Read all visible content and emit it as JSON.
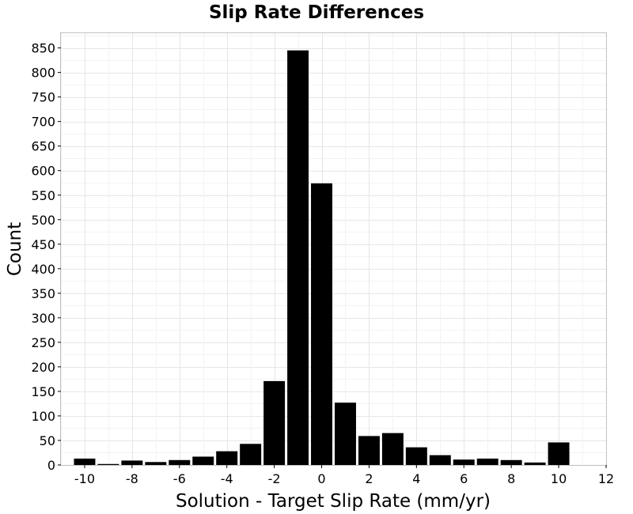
{
  "chart_data": {
    "type": "bar",
    "title": "Slip Rate Differences",
    "xlabel": "Solution - Target Slip Rate (mm/yr)",
    "ylabel": "Count",
    "xlim": [
      -11,
      12
    ],
    "ylim": [
      0,
      880
    ],
    "xticks": [
      -10,
      -8,
      -6,
      -4,
      -2,
      0,
      2,
      4,
      6,
      8,
      10,
      12
    ],
    "yticks": [
      0,
      50,
      100,
      150,
      200,
      250,
      300,
      350,
      400,
      450,
      500,
      550,
      600,
      650,
      700,
      750,
      800,
      850
    ],
    "bin_width": 1,
    "grid": true,
    "bar_color": "#000000",
    "grid_color": "#e6e6e6",
    "x": [
      -10,
      -9,
      -8,
      -7,
      -6,
      -5,
      -4,
      -3,
      -2,
      -1,
      0,
      1,
      2,
      3,
      4,
      5,
      6,
      7,
      8,
      9,
      10
    ],
    "values": [
      13,
      2,
      9,
      6,
      10,
      17,
      28,
      43,
      171,
      845,
      574,
      127,
      59,
      65,
      36,
      20,
      11,
      13,
      10,
      5,
      46
    ]
  }
}
